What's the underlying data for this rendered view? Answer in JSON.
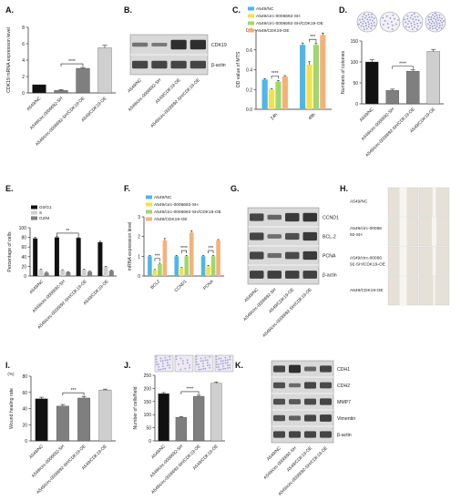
{
  "panel_letters": [
    "A.",
    "B.",
    "C.",
    "D.",
    "E.",
    "F.",
    "G.",
    "H.",
    "I.",
    "J.",
    "K."
  ],
  "colors": {
    "black": "#111111",
    "dark_gray": "#7f7f7f",
    "light_gray": "#cfcfcf",
    "c_nc": "#4cb7e8",
    "c_sh": "#f6e04a",
    "c_shoe": "#9ed86a",
    "c_oe": "#f3b27a",
    "blot_bg": "#d9d9d9",
    "band": "#262626",
    "wound_bg": "#e6e1d8",
    "colony": "#7e7fbf",
    "transwell": "#9b96c4"
  },
  "groups_short": [
    "A549/NC",
    "A549/circ-0006692-SH",
    "A549/circ-0006692-SH/CDK19-OE",
    "A549/CDK19-OE"
  ],
  "h_groups": [
    "A549/NC",
    "A549/circ-00066\n92-SH",
    "A549/circ-00066\n92-SH/CDK19-OE",
    "A549/CDK19-OE"
  ],
  "blots": {
    "B": {
      "labels": [
        "CDK19",
        "β-actin"
      ],
      "lanes": [
        "A549/NC",
        "A549/circ-0006692-SH",
        "A549/CDK19-OE",
        "A549/circ-0006692-SH/CDK19-OE"
      ]
    },
    "G": {
      "labels": [
        "CCND1",
        "BCL-2",
        "PCNA",
        "β-actin"
      ],
      "lanes": [
        "A549/NC",
        "A549/circ-0006692-SH",
        "A549/CDK19-OE",
        "A549/circ-0006692-SH/CDK19-OE"
      ]
    },
    "K": {
      "labels": [
        "CDH1",
        "CDH2",
        "MMP7",
        "Vimentin",
        "β-actin"
      ],
      "lanes": [
        "A549/NC",
        "A549/circ-0006692-SH",
        "A549/CDK19-OE",
        "A549/circ-0006692-SH/CDK19-OE"
      ]
    }
  },
  "chart_data": [
    {
      "panel": "A",
      "type": "bar",
      "categories": [
        "A549/NC",
        "A549/circ-0006692-SH",
        "A549/circ-0006692-SH/CDK19-OE",
        "A549/CDK19-OE"
      ],
      "values": [
        1.0,
        0.3,
        3.0,
        5.5
      ],
      "errors": [
        0,
        0.1,
        0.1,
        0.3
      ],
      "ylabel": "CDK19 mRNA expression level",
      "ylim": [
        0,
        8
      ],
      "yticks": [
        "0",
        "2",
        "4",
        "6",
        "8"
      ],
      "colors": [
        "#111111",
        "#7f7f7f",
        "#7f7f7f",
        "#cfcfcf"
      ],
      "sig": {
        "between": [
          1,
          2
        ],
        "label": "****"
      }
    },
    {
      "panel": "C",
      "type": "bar",
      "categories": [
        "24h",
        "48h"
      ],
      "ylabel": "OD value of MTS",
      "ylim": [
        0,
        0.8
      ],
      "yticks": [
        "0.0",
        "0.2",
        "0.4",
        "0.6",
        "0.8"
      ],
      "series": [
        {
          "name": "A549/NC",
          "values": [
            0.3,
            0.65
          ],
          "errors": [
            0.01,
            0.02
          ]
        },
        {
          "name": "A549/circ-0006692-SH",
          "values": [
            0.2,
            0.45
          ],
          "errors": [
            0.01,
            0.03
          ]
        },
        {
          "name": "A549/circ-0006692-SH/CDK19-OE",
          "values": [
            0.28,
            0.65
          ],
          "errors": [
            0.01,
            0.02
          ]
        },
        {
          "name": "A549/CDK19-OE",
          "values": [
            0.33,
            0.75
          ],
          "errors": [
            0.01,
            0.02
          ]
        }
      ],
      "sig": [
        {
          "category": 0,
          "between": [
            1,
            2
          ],
          "label": "****"
        },
        {
          "category": 1,
          "between": [
            1,
            2
          ],
          "label": "***"
        }
      ]
    },
    {
      "panel": "D",
      "type": "bar",
      "categories": [
        "A549/NC",
        "A549/circ-0006692-SH",
        "A549/circ-0006692-SH/CDK19-OE",
        "A549/CDK19-OE"
      ],
      "values": [
        100,
        32,
        78,
        125
      ],
      "errors": [
        5,
        3,
        3,
        5
      ],
      "ylabel": "Numbers of colonies",
      "ylim": [
        0,
        150
      ],
      "yticks": [
        "0",
        "50",
        "100",
        "150"
      ],
      "colors": [
        "#111111",
        "#7f7f7f",
        "#7f7f7f",
        "#cfcfcf"
      ],
      "sig": {
        "between": [
          1,
          2
        ],
        "label": "****"
      }
    },
    {
      "panel": "E",
      "type": "bar",
      "categories": [
        "A549/NC",
        "A549/circ-0006692-SH",
        "A549/circ-0006692-SH/CDK19-OE",
        "A549/CDK19-OE"
      ],
      "ylabel": "Percentage of cells",
      "ylim": [
        0,
        100
      ],
      "yticks": [
        "0",
        "20",
        "40",
        "60",
        "80",
        "100"
      ],
      "series": [
        {
          "name": "G0/G1",
          "values": [
            78,
            80,
            79,
            70
          ],
          "errors": [
            2,
            2,
            2,
            2
          ]
        },
        {
          "name": "S",
          "values": [
            13,
            12,
            13,
            19
          ],
          "errors": [
            1,
            1,
            1,
            1
          ]
        },
        {
          "name": "G2/M",
          "values": [
            7,
            8,
            9,
            11
          ],
          "errors": [
            1,
            1,
            1,
            1
          ]
        }
      ],
      "legend": "top-left",
      "sig": {
        "series": 0,
        "between": [
          1,
          2
        ],
        "label": "**"
      }
    },
    {
      "panel": "F",
      "type": "bar",
      "categories": [
        "BCL2",
        "CCND1",
        "PCNA"
      ],
      "ylabel": "mRNA expression level",
      "ylim": [
        0,
        3
      ],
      "yticks": [
        "0",
        "1",
        "2",
        "3"
      ],
      "series": [
        {
          "name": "A549/NC",
          "values": [
            1.0,
            1.0,
            1.0
          ],
          "errors": [
            0.05,
            0.05,
            0.05
          ]
        },
        {
          "name": "A549/circ-0006692-SH",
          "values": [
            0.3,
            0.4,
            0.5
          ],
          "errors": [
            0.03,
            0.03,
            0.04
          ]
        },
        {
          "name": "A549/circ-0006692-SH/CDK19-OE",
          "values": [
            0.6,
            1.0,
            1.0
          ],
          "errors": [
            0.05,
            0.05,
            0.05
          ]
        },
        {
          "name": "A549/CDK19-OE",
          "values": [
            1.8,
            2.2,
            1.8
          ],
          "errors": [
            0.1,
            0.1,
            0.05
          ]
        }
      ],
      "sig": [
        {
          "category": 0,
          "label": "***"
        },
        {
          "category": 1,
          "label": "****"
        },
        {
          "category": 2,
          "label": "***"
        }
      ]
    },
    {
      "panel": "I",
      "type": "bar",
      "categories": [
        "A549/NC",
        "A549/circ-0006692-SH",
        "A549/circ-0006692-SH/CDK19-OE",
        "A549/CDK19-OE"
      ],
      "values": [
        52,
        43,
        53,
        63
      ],
      "errors": [
        2,
        2,
        2,
        1
      ],
      "ylabel": "Wound healing rate",
      "yunit": "(%)",
      "ylim": [
        0,
        80
      ],
      "yticks": [
        "0",
        "20",
        "40",
        "60",
        "80"
      ],
      "colors": [
        "#111111",
        "#7f7f7f",
        "#7f7f7f",
        "#cfcfcf"
      ],
      "sig": {
        "between": [
          1,
          2
        ],
        "label": "***"
      }
    },
    {
      "panel": "J",
      "type": "bar",
      "categories": [
        "A549/NC",
        "A549/circ-0006692-SH",
        "A549/circ-0006692-SH/CDK19-OE",
        "A549/CDK19-OE"
      ],
      "values": [
        180,
        90,
        170,
        220
      ],
      "errors": [
        4,
        3,
        4,
        4
      ],
      "ylabel": "Number of cells/field",
      "ylim": [
        0,
        250
      ],
      "yticks": [
        "0",
        "50",
        "100",
        "150",
        "200",
        "250"
      ],
      "colors": [
        "#111111",
        "#7f7f7f",
        "#7f7f7f",
        "#cfcfcf"
      ],
      "sig": {
        "between": [
          1,
          2
        ],
        "label": "****"
      }
    }
  ]
}
